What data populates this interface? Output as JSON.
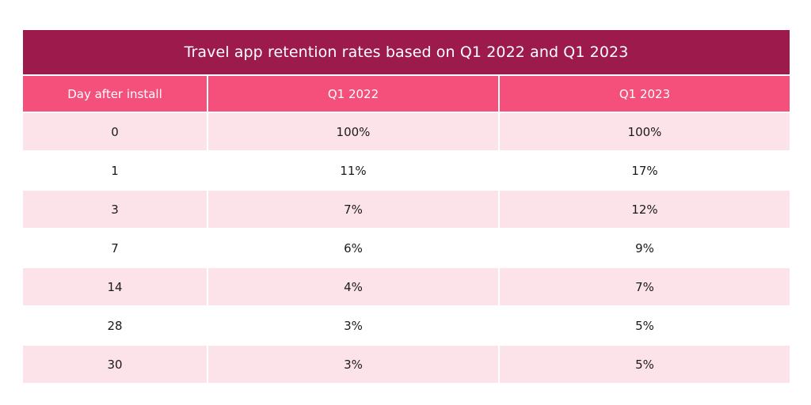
{
  "chart_data": {
    "type": "table",
    "title": "Travel app retention rates based on Q1 2022 and Q1 2023",
    "columns": [
      "Day after install",
      "Q1 2022",
      "Q1 2023"
    ],
    "rows": [
      [
        "0",
        "100%",
        "100%"
      ],
      [
        "1",
        "11%",
        "17%"
      ],
      [
        "3",
        "7%",
        "12%"
      ],
      [
        "7",
        "6%",
        "9%"
      ],
      [
        "14",
        "4%",
        "7%"
      ],
      [
        "28",
        "3%",
        "5%"
      ],
      [
        "30",
        "3%",
        "5%"
      ]
    ],
    "colors": {
      "title_bg": "#9c1a4c",
      "header_bg": "#f54f7b",
      "shaded_row_bg": "#fce3ea",
      "plain_row_bg": "#ffffff"
    }
  }
}
